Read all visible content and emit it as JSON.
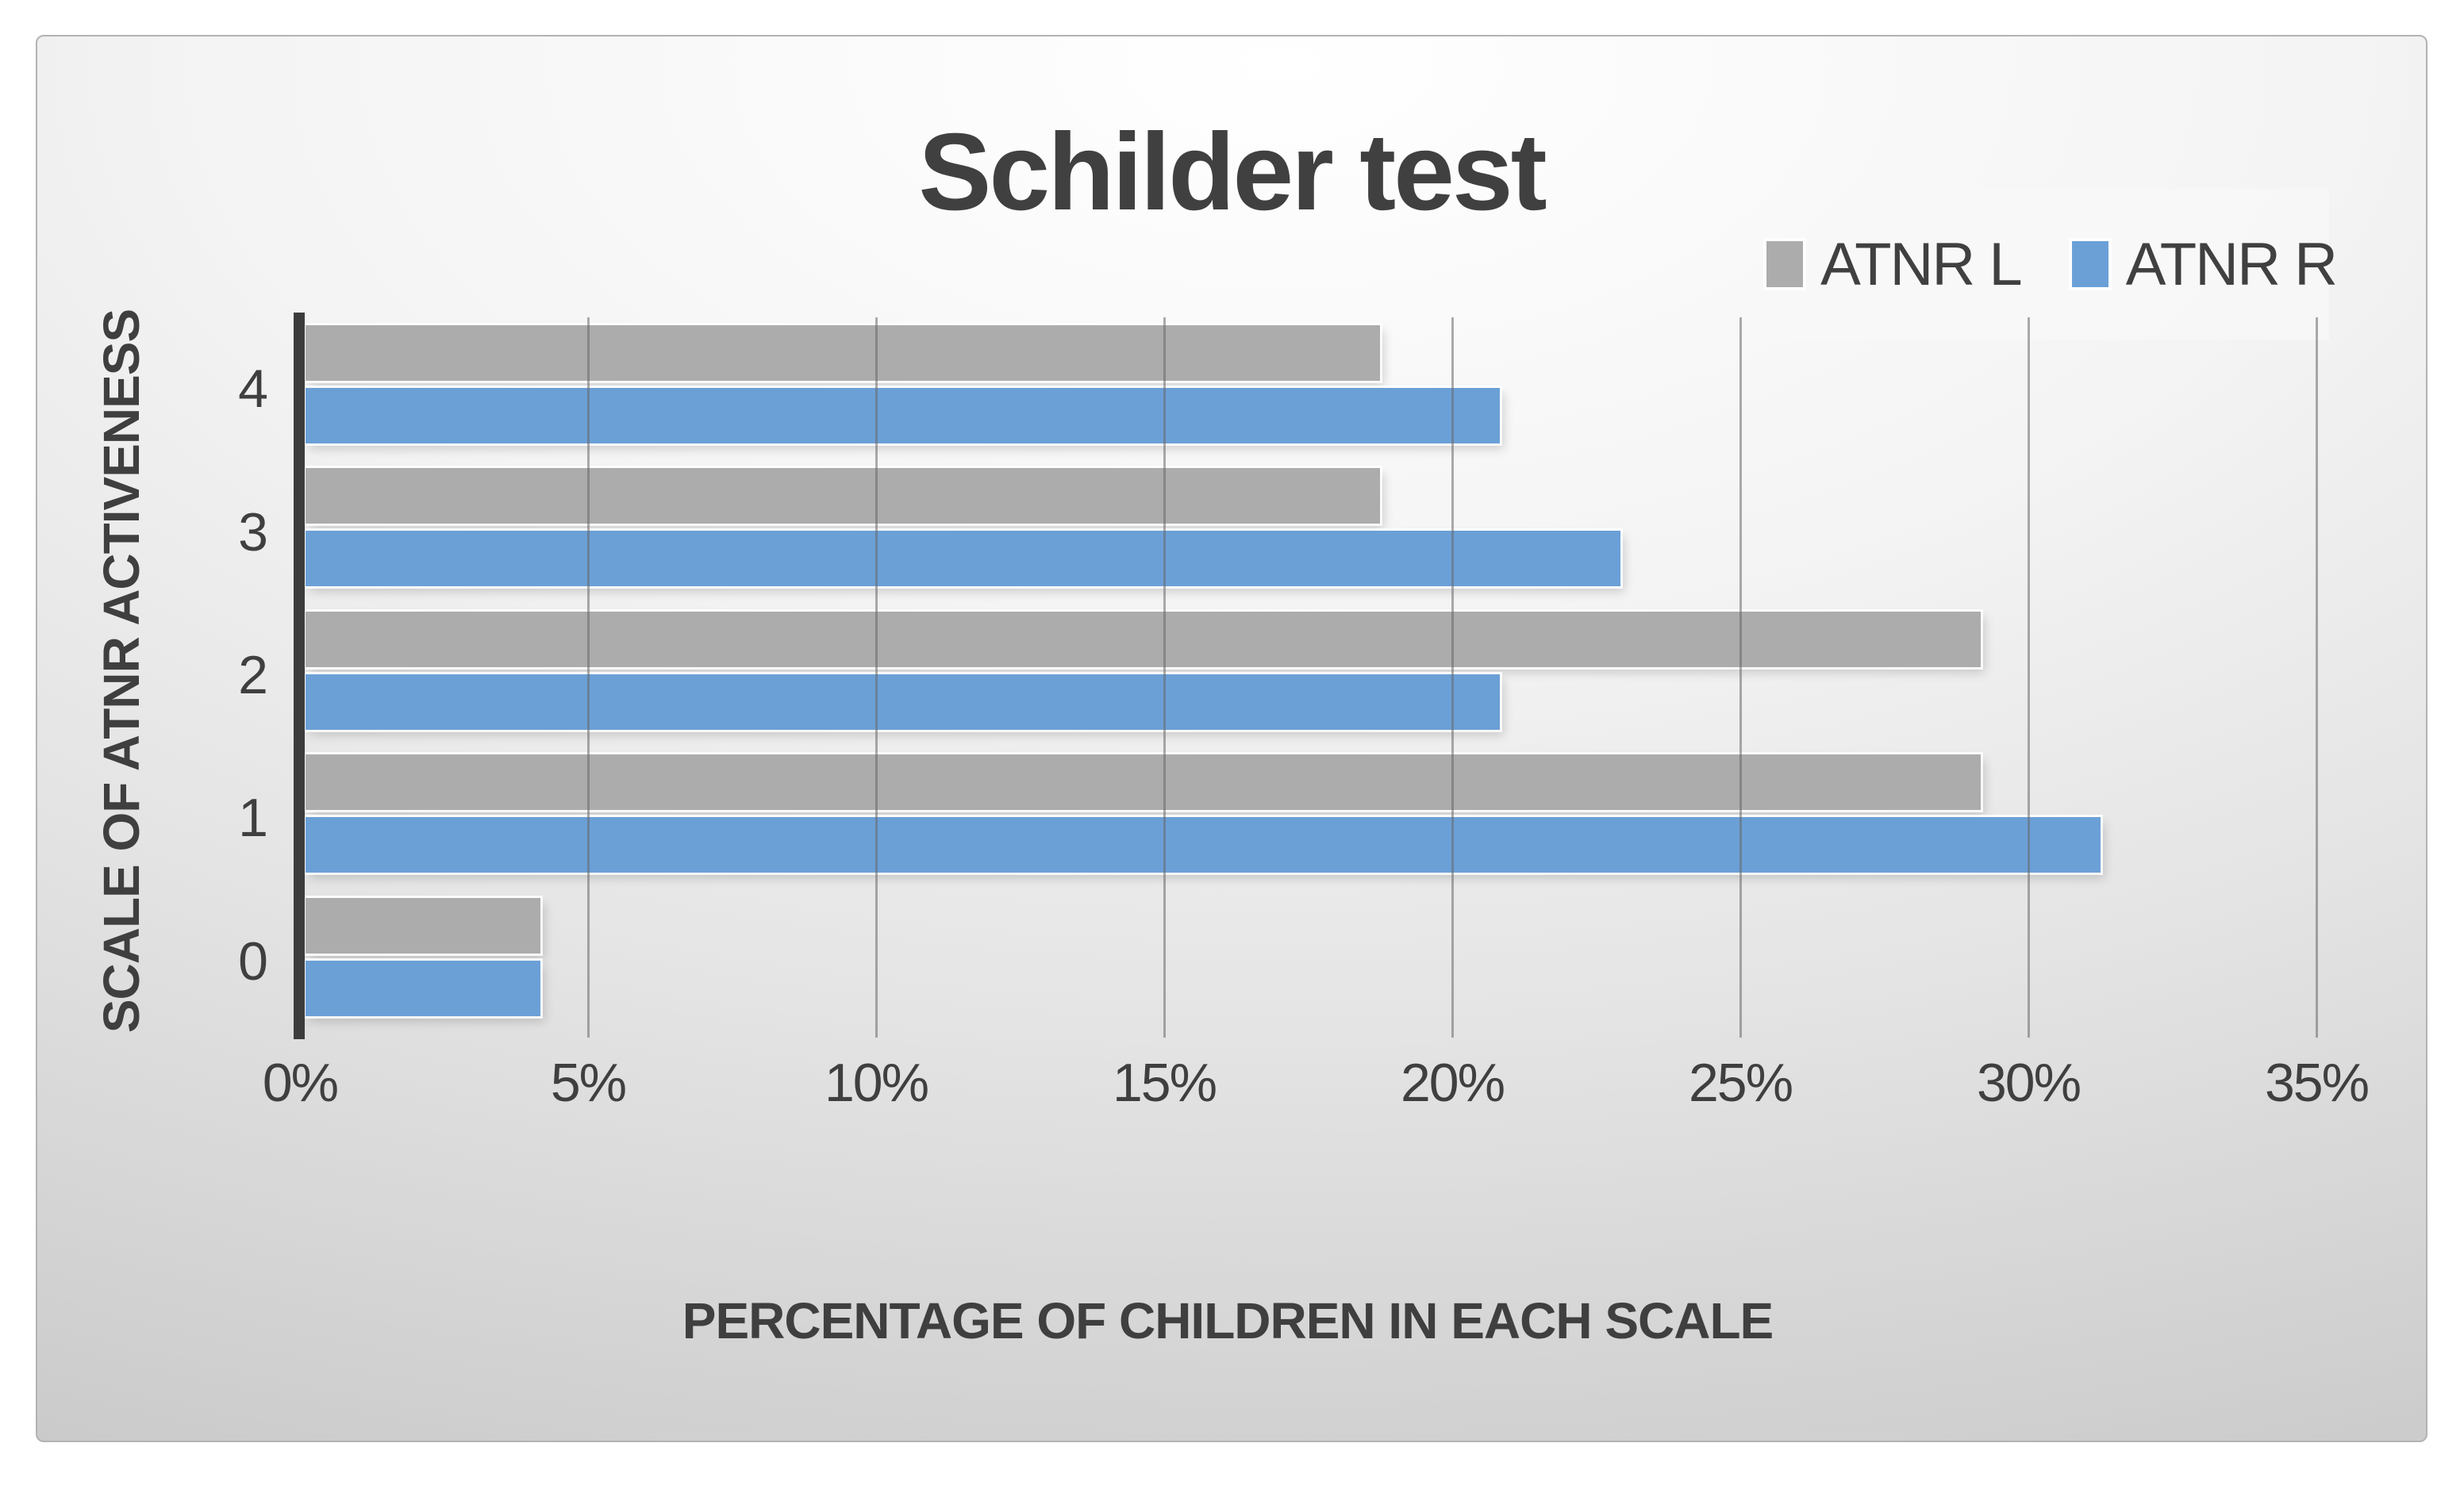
{
  "page": {
    "background": "#ffffff"
  },
  "slide": {
    "background_center": "#ffffff",
    "background_edge": "#c6c6c6",
    "border_color": "#b3b3b3"
  },
  "colors": {
    "text": "#404040",
    "axis_line": "#3c3c3c",
    "gridline": "#686868",
    "series_gray": "#acacac",
    "series_blue": "#6ba0d7",
    "legend_panel": "#f8f8f8"
  },
  "chart_data": {
    "type": "bar",
    "orientation": "horizontal",
    "title": "Schilder test",
    "xlabel": "PERCENTAGE OF CHILDREN IN EACH SCALE",
    "ylabel": "SCALE OF ATNR ACTIVENESS",
    "categories": [
      "4",
      "3",
      "2",
      "1",
      "0"
    ],
    "x_ticks": [
      "0%",
      "5%",
      "10%",
      "15%",
      "20%",
      "25%",
      "30%",
      "35%"
    ],
    "xlim": [
      0,
      35
    ],
    "grid": true,
    "legend": {
      "position": "top-right",
      "entries": [
        {
          "label": "ATNR L",
          "color": "#acacac"
        },
        {
          "label": "ATNR R",
          "color": "#6ba0d7"
        }
      ]
    },
    "series": [
      {
        "name": "ATNR L",
        "color": "#acacac",
        "values": [
          18.75,
          18.75,
          29.17,
          29.17,
          4.17
        ]
      },
      {
        "name": "ATNR R",
        "color": "#6ba0d7",
        "values": [
          20.83,
          22.92,
          20.83,
          31.25,
          4.17
        ]
      }
    ]
  }
}
